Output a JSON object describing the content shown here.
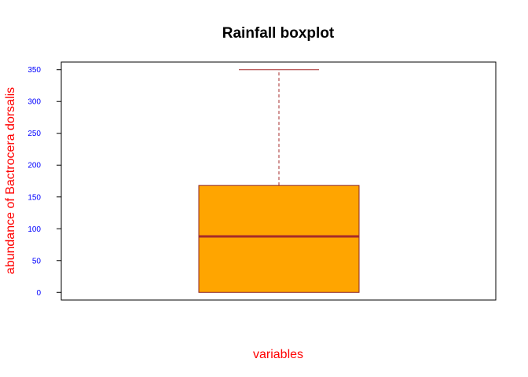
{
  "chart_data": {
    "type": "box",
    "title": "Rainfall boxplot",
    "xlabel": "variables",
    "ylabel": "abundance of Bactrocera dorsalis",
    "ylim": [
      -12,
      362
    ],
    "yticks": [
      0,
      50,
      100,
      150,
      200,
      250,
      300,
      350
    ],
    "box": {
      "min": 0,
      "q1": 0,
      "median": 88,
      "q3": 168,
      "max": 350
    },
    "grid": false,
    "legend": "none",
    "colors": {
      "box_fill": "#FFA500",
      "box_border": "#8B2323",
      "median_line": "#A52A2A",
      "whisker": "#A52A2A",
      "axis_label": "#FF0000",
      "tick_label": "#0000FF",
      "title": "#000000",
      "frame": "#000000"
    }
  }
}
